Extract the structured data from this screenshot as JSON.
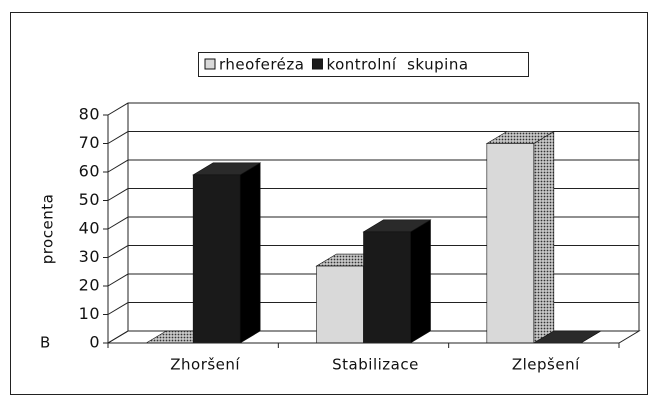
{
  "chart_data": {
    "type": "bar",
    "annotation": "B",
    "ylabel": "procenta",
    "categories": [
      "Zhoršení",
      "Stabilizace",
      "Zlepšení"
    ],
    "series": [
      {
        "name": "rheoferéza",
        "color": "#d9d9d9",
        "values": [
          0,
          27,
          70
        ]
      },
      {
        "name": "kontrolní  skupina",
        "color": "#1a1a1a",
        "values": [
          59,
          39,
          0
        ]
      }
    ],
    "ylim": [
      0,
      80
    ],
    "yticks": [
      0,
      10,
      20,
      30,
      40,
      50,
      60,
      70,
      80
    ],
    "grid": true
  }
}
